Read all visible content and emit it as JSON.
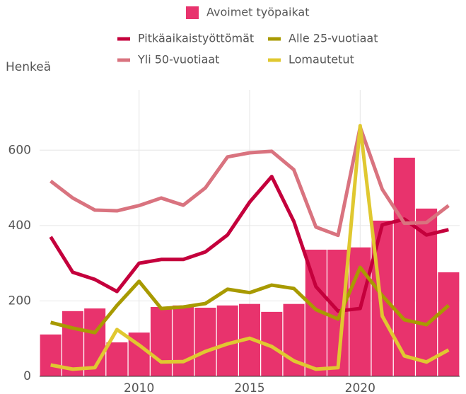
{
  "chart_data": {
    "type": "bar",
    "y_label": "Henkeä",
    "x": [
      2006,
      2007,
      2008,
      2009,
      2010,
      2011,
      2012,
      2013,
      2014,
      2015,
      2016,
      2017,
      2018,
      2019,
      2020,
      2021,
      2022,
      2023,
      2024
    ],
    "xlim": [
      2005.5,
      2024.5
    ],
    "xticks": [
      2010,
      2015,
      2020
    ],
    "ylim": [
      0,
      760
    ],
    "yticks": [
      0,
      200,
      400,
      600
    ],
    "grid": true,
    "series": [
      {
        "name": "Avoimet työpaikat",
        "type": "bar",
        "color": "#e8336d",
        "values": [
          111,
          173,
          180,
          90,
          116,
          184,
          188,
          182,
          188,
          192,
          171,
          192,
          336,
          336,
          342,
          413,
          580,
          445,
          276
        ]
      },
      {
        "name": "Pitkäaikaistyöttömät",
        "type": "line",
        "color": "#c4003c",
        "values": [
          370,
          276,
          257,
          225,
          300,
          310,
          310,
          330,
          375,
          462,
          530,
          411,
          238,
          173,
          180,
          402,
          417,
          375,
          389
        ]
      },
      {
        "name": "Alle 25-vuotiaat",
        "type": "line",
        "color": "#a89a00",
        "values": [
          143,
          128,
          116,
          188,
          252,
          180,
          184,
          193,
          231,
          222,
          242,
          233,
          177,
          152,
          289,
          214,
          150,
          137,
          188
        ]
      },
      {
        "name": "Yli 50-vuotiaat",
        "type": "line",
        "color": "#d9737f",
        "values": [
          518,
          473,
          441,
          439,
          453,
          473,
          454,
          500,
          582,
          593,
          597,
          548,
          396,
          374,
          661,
          496,
          406,
          408,
          453
        ]
      },
      {
        "name": "Lomautetut",
        "type": "line",
        "color": "#e0c830",
        "values": [
          30,
          19,
          23,
          124,
          83,
          38,
          39,
          66,
          86,
          101,
          79,
          41,
          19,
          23,
          665,
          160,
          54,
          38,
          70
        ]
      }
    ]
  }
}
